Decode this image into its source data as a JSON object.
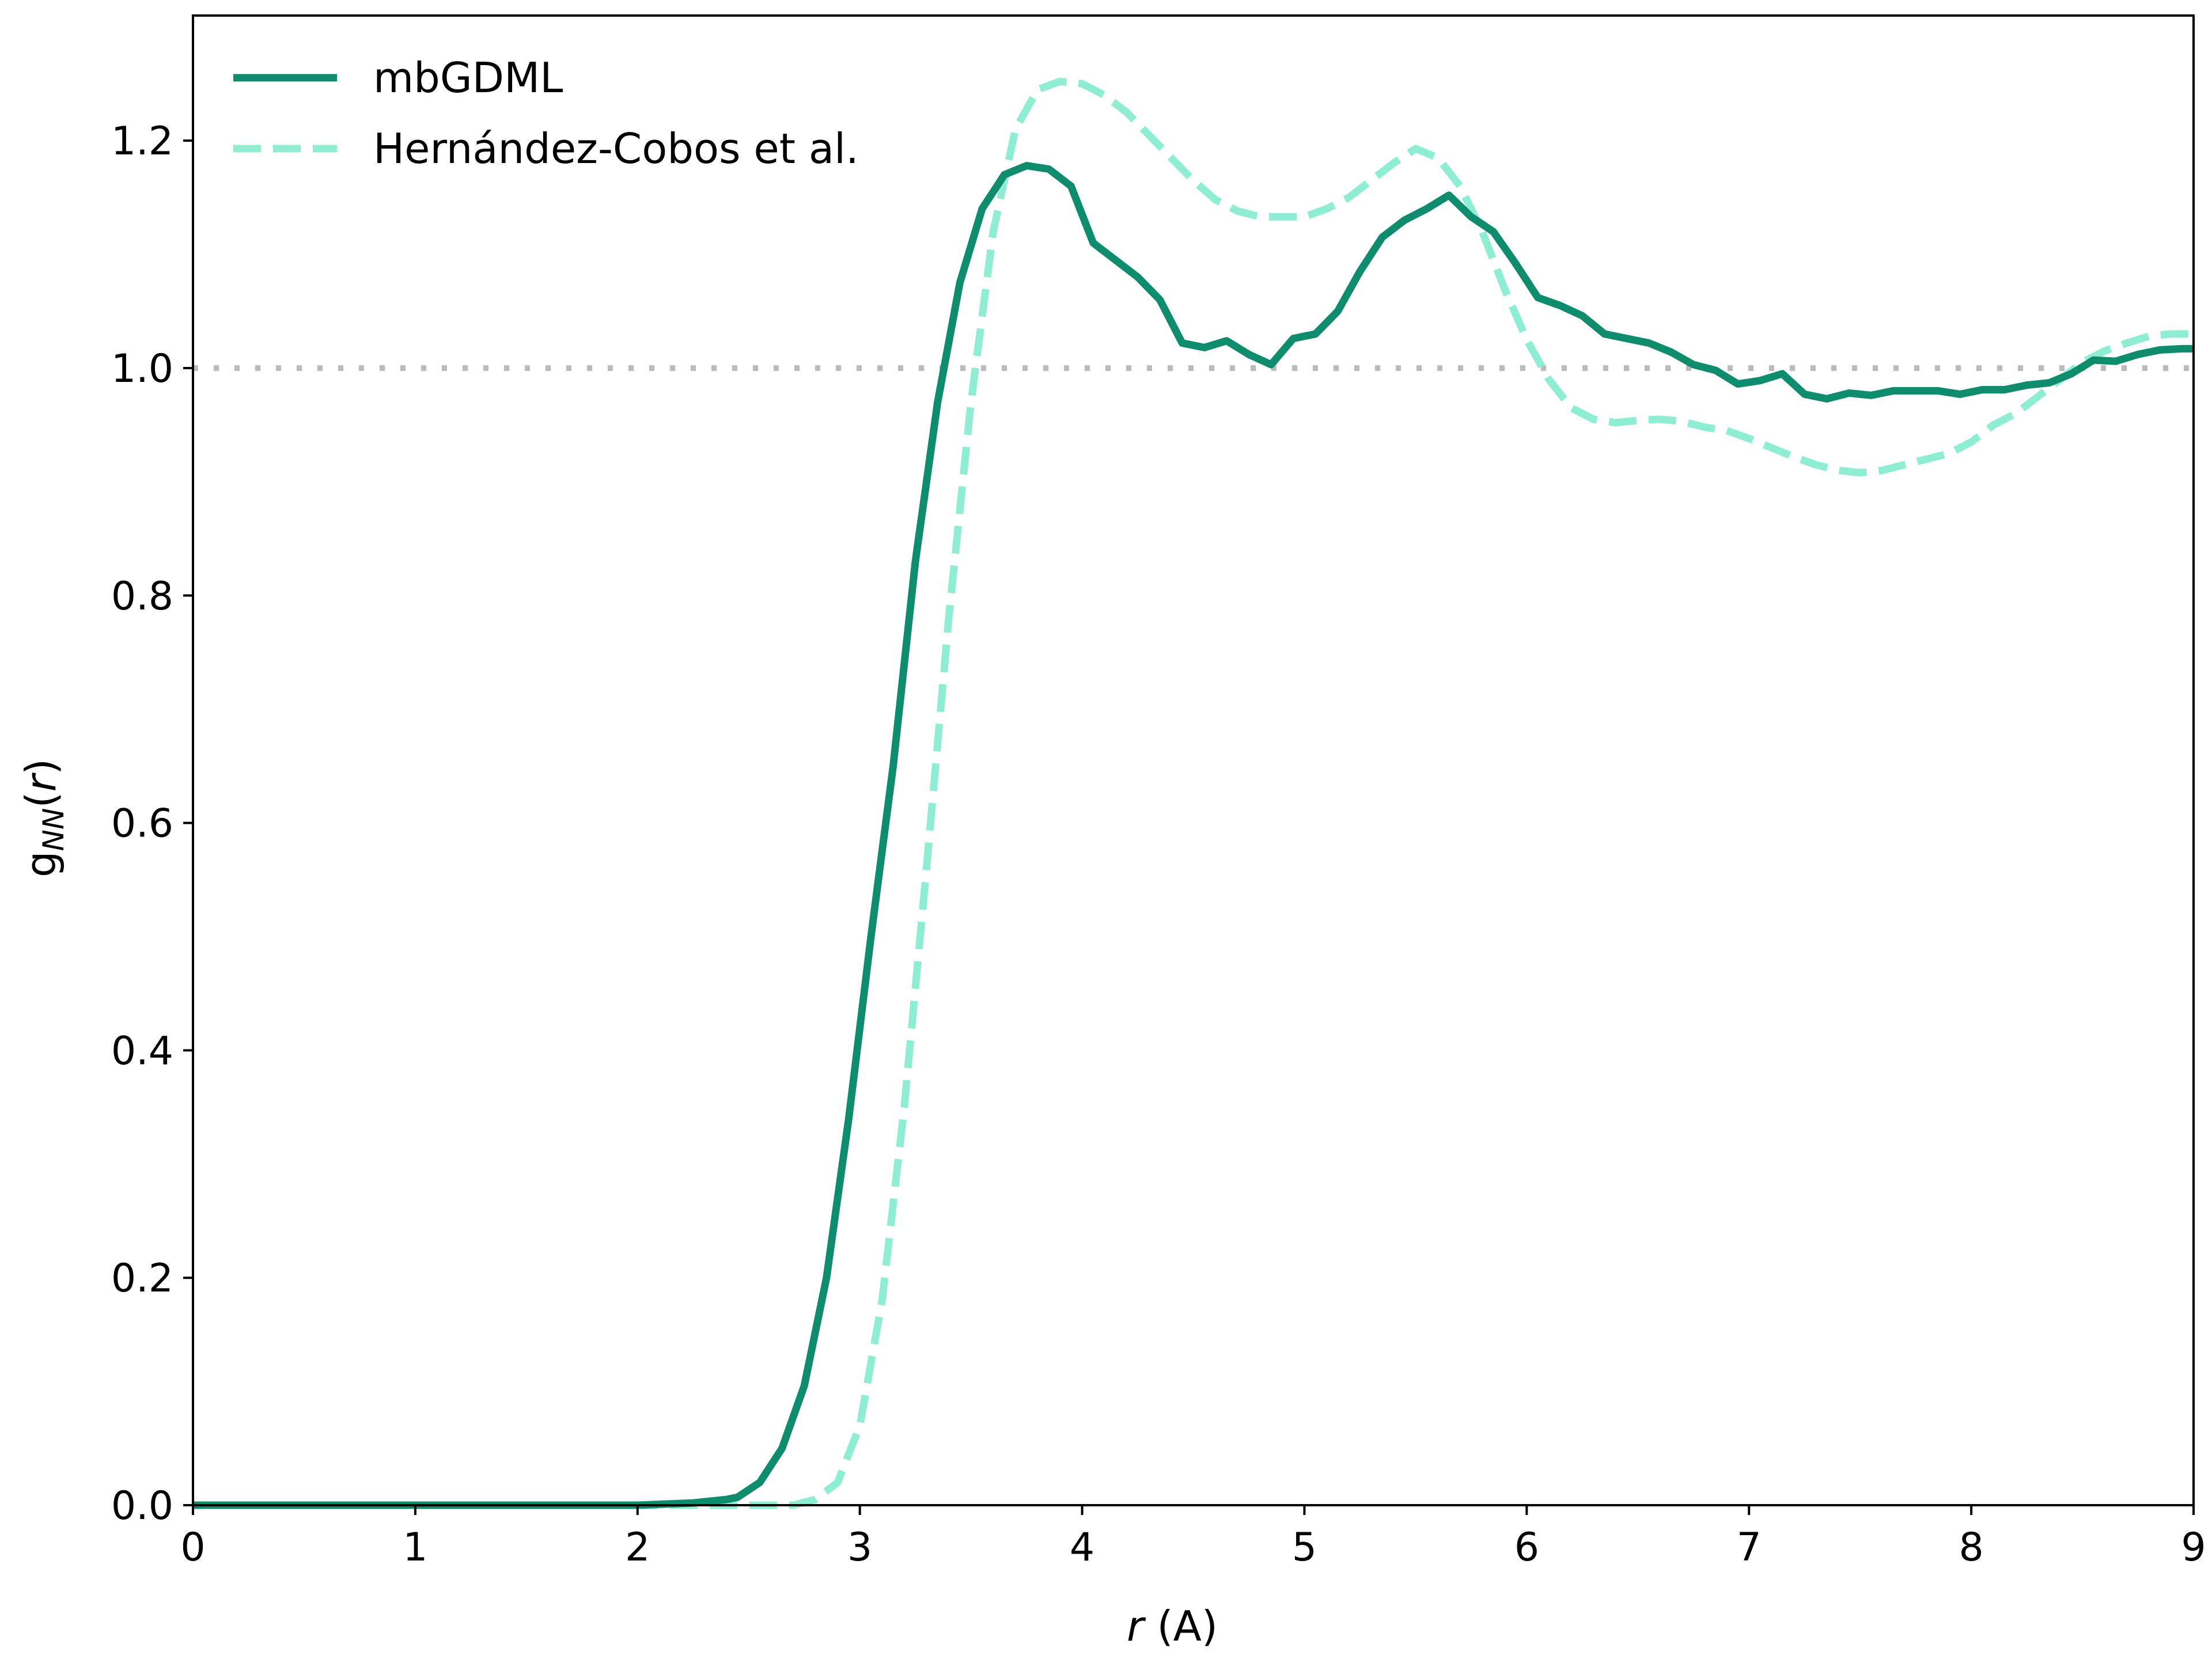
{
  "chart_data": {
    "type": "line",
    "xlabel": {
      "var": "r",
      "unit": " (A)"
    },
    "ylabel": {
      "main": "g",
      "sub": "NN",
      "arg_open": "(",
      "arg": "r",
      "arg_close": ")"
    },
    "xlim": [
      0,
      9
    ],
    "ylim": [
      0,
      1.31
    ],
    "xticks": [
      0,
      1,
      2,
      3,
      4,
      5,
      6,
      7,
      8,
      9
    ],
    "xtick_labels": [
      "0",
      "1",
      "2",
      "3",
      "4",
      "5",
      "6",
      "7",
      "8",
      "9"
    ],
    "yticks": [
      0.0,
      0.2,
      0.4,
      0.6,
      0.8,
      1.0,
      1.2
    ],
    "ytick_labels": [
      "0.0",
      "0.2",
      "0.4",
      "0.6",
      "0.8",
      "1.0",
      "1.2"
    ],
    "grid": false,
    "legend_position": "top-left",
    "reference_line": {
      "y": 1.0,
      "style": "dotted",
      "color": "#bbbbbb"
    },
    "series": [
      {
        "name": "mbGDML",
        "style": "solid",
        "color": "#0f8c6e",
        "x": [
          0,
          0.5,
          1.0,
          1.5,
          2.0,
          2.25,
          2.4,
          2.45,
          2.55,
          2.65,
          2.75,
          2.85,
          2.95,
          3.05,
          3.15,
          3.25,
          3.35,
          3.45,
          3.55,
          3.65,
          3.75,
          3.85,
          3.95,
          4.05,
          4.15,
          4.25,
          4.35,
          4.45,
          4.55,
          4.65,
          4.75,
          4.85,
          4.95,
          5.05,
          5.15,
          5.25,
          5.35,
          5.45,
          5.55,
          5.65,
          5.75,
          5.85,
          5.95,
          6.05,
          6.15,
          6.25,
          6.35,
          6.45,
          6.55,
          6.65,
          6.75,
          6.85,
          6.95,
          7.05,
          7.15,
          7.25,
          7.35,
          7.45,
          7.55,
          7.65,
          7.75,
          7.85,
          7.95,
          8.05,
          8.15,
          8.25,
          8.35,
          8.45,
          8.55,
          8.65,
          8.75,
          8.85,
          8.95,
          9.0
        ],
        "y": [
          0.0,
          0.0,
          0.0,
          0.0,
          0.0,
          0.002,
          0.005,
          0.007,
          0.02,
          0.05,
          0.105,
          0.2,
          0.34,
          0.5,
          0.65,
          0.83,
          0.97,
          1.075,
          1.14,
          1.17,
          1.178,
          1.175,
          1.16,
          1.11,
          1.095,
          1.08,
          1.06,
          1.022,
          1.018,
          1.024,
          1.012,
          1.003,
          1.026,
          1.03,
          1.05,
          1.085,
          1.115,
          1.13,
          1.14,
          1.152,
          1.133,
          1.12,
          1.092,
          1.062,
          1.055,
          1.046,
          1.03,
          1.026,
          1.022,
          1.014,
          1.003,
          0.998,
          0.986,
          0.989,
          0.995,
          0.977,
          0.973,
          0.978,
          0.976,
          0.98,
          0.98,
          0.98,
          0.977,
          0.981,
          0.981,
          0.985,
          0.987,
          0.995,
          1.007,
          1.006,
          1.012,
          1.016,
          1.017,
          1.017
        ]
      },
      {
        "name": "Hernández-Cobos et al.",
        "style": "dashed",
        "color": "#8eedd2",
        "x": [
          0,
          0.5,
          1.0,
          1.5,
          2.0,
          2.5,
          2.7,
          2.8,
          2.9,
          3.0,
          3.1,
          3.2,
          3.3,
          3.4,
          3.5,
          3.6,
          3.7,
          3.8,
          3.9,
          4.0,
          4.1,
          4.2,
          4.3,
          4.4,
          4.5,
          4.6,
          4.7,
          4.8,
          4.9,
          5.0,
          5.1,
          5.2,
          5.3,
          5.4,
          5.5,
          5.6,
          5.7,
          5.8,
          5.9,
          6.0,
          6.1,
          6.2,
          6.3,
          6.4,
          6.5,
          6.6,
          6.7,
          6.8,
          6.9,
          7.0,
          7.1,
          7.2,
          7.3,
          7.4,
          7.5,
          7.6,
          7.7,
          7.8,
          7.9,
          8.0,
          8.1,
          8.2,
          8.3,
          8.4,
          8.5,
          8.6,
          8.7,
          8.8,
          8.9,
          9.0
        ],
        "y": [
          0.0,
          0.0,
          0.0,
          0.0,
          0.0,
          0.0,
          0.0,
          0.005,
          0.02,
          0.07,
          0.18,
          0.35,
          0.56,
          0.78,
          0.97,
          1.12,
          1.21,
          1.245,
          1.252,
          1.25,
          1.24,
          1.225,
          1.205,
          1.185,
          1.165,
          1.148,
          1.138,
          1.133,
          1.133,
          1.133,
          1.14,
          1.15,
          1.165,
          1.18,
          1.193,
          1.185,
          1.16,
          1.12,
          1.07,
          1.025,
          0.99,
          0.965,
          0.955,
          0.952,
          0.954,
          0.955,
          0.953,
          0.948,
          0.945,
          0.938,
          0.93,
          0.922,
          0.915,
          0.91,
          0.908,
          0.91,
          0.915,
          0.92,
          0.925,
          0.935,
          0.95,
          0.96,
          0.975,
          0.99,
          1.005,
          1.015,
          1.022,
          1.028,
          1.03,
          1.03
        ]
      }
    ]
  }
}
